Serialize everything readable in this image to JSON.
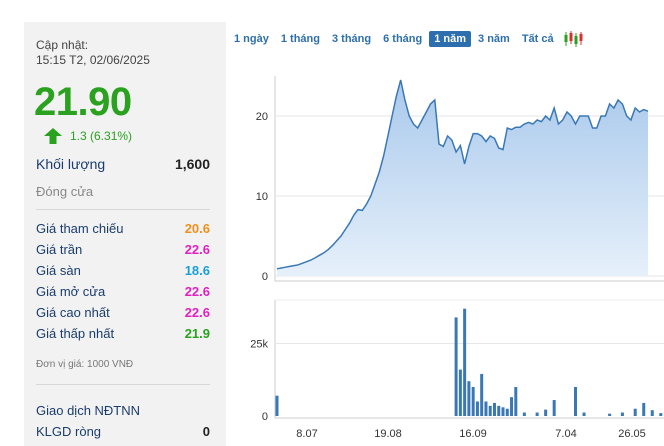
{
  "stock": {
    "updated_label": "Cập nhật:",
    "updated_time": "15:15 T2, 02/06/2025",
    "price": "21.90",
    "change": "1.3 (6.31%)",
    "volume_label": "Khối lượng",
    "volume_value": "1,600",
    "close_label": "Đóng cửa"
  },
  "price_rows": [
    {
      "label": "Giá tham chiếu",
      "value": "20.6",
      "color": "#f0901c"
    },
    {
      "label": "Giá trần",
      "value": "22.6",
      "color": "#e020c0"
    },
    {
      "label": "Giá sàn",
      "value": "18.6",
      "color": "#1aa0d8"
    },
    {
      "label": "Giá mở cửa",
      "value": "22.6",
      "color": "#e020c0"
    },
    {
      "label": "Giá cao nhất",
      "value": "22.6",
      "color": "#e020c0"
    },
    {
      "label": "Giá thấp nhất",
      "value": "21.9",
      "color": "#2aa11f"
    }
  ],
  "unit_note": "Đơn vị giá: 1000 VNĐ",
  "foreign": {
    "title": "Giao dịch NĐTNN",
    "klgd_label": "KLGD ròng",
    "klgd_value": "0"
  },
  "tabs": [
    "1 ngày",
    "1 tháng",
    "3 tháng",
    "6 tháng",
    "1 năm",
    "3 năm",
    "Tất cả"
  ],
  "active_tab": "1 năm",
  "colors": {
    "up": "#2aa11f",
    "link": "#1a3d6d",
    "tab": "#2d6fae",
    "price_line": "#3a78b5",
    "volume_bar": "#3a78b5"
  },
  "chart_data": [
    {
      "type": "area",
      "x_tick_labels": [
        "8.07",
        "19.08",
        "16.09",
        "7.04",
        "26.05"
      ],
      "y_ticks": [
        0,
        10,
        20
      ],
      "ylim": [
        0,
        25
      ],
      "values": [
        0.9,
        1.0,
        1.1,
        1.2,
        1.3,
        1.4,
        1.6,
        1.8,
        2.0,
        2.3,
        2.6,
        2.9,
        3.3,
        3.8,
        4.4,
        5.0,
        5.8,
        6.6,
        7.6,
        8.3,
        8.2,
        9.0,
        10.0,
        11.5,
        13.0,
        15.0,
        17.5,
        20.0,
        22.5,
        24.5,
        22.0,
        20.0,
        19.0,
        18.5,
        19.5,
        20.5,
        21.5,
        22.0,
        16.5,
        16.2,
        17.5,
        17.0,
        15.5,
        16.3,
        14.0,
        16.2,
        17.8,
        17.8,
        17.5,
        16.8,
        17.5,
        17.2,
        16.0,
        15.8,
        18.5,
        18.3,
        18.6,
        18.6,
        19.0,
        19.2,
        19.0,
        19.5,
        19.3,
        20.0,
        19.5,
        21.0,
        19.0,
        19.5,
        20.5,
        20.0,
        19.0,
        20.0,
        20.0,
        20.0,
        18.5,
        18.5,
        20.0,
        20.0,
        21.5,
        21.0,
        22.0,
        21.5,
        20.0,
        19.5,
        21.0,
        20.5,
        20.8,
        20.6
      ],
      "xlabel": "",
      "ylabel": "",
      "grid": true
    },
    {
      "type": "bar",
      "y_tick_labels": [
        "25k",
        "0"
      ],
      "y_ticks": [
        25000,
        0
      ],
      "ylim": [
        0,
        40000
      ],
      "bars": [
        {
          "i": 0,
          "v": 7000
        },
        {
          "i": 42,
          "v": 34000
        },
        {
          "i": 43,
          "v": 16000
        },
        {
          "i": 44,
          "v": 37000
        },
        {
          "i": 45,
          "v": 12000
        },
        {
          "i": 46,
          "v": 10000
        },
        {
          "i": 47,
          "v": 5000
        },
        {
          "i": 48,
          "v": 14500
        },
        {
          "i": 49,
          "v": 5000
        },
        {
          "i": 50,
          "v": 3500
        },
        {
          "i": 51,
          "v": 4500
        },
        {
          "i": 52,
          "v": 3500
        },
        {
          "i": 53,
          "v": 3000
        },
        {
          "i": 54,
          "v": 2500
        },
        {
          "i": 55,
          "v": 6500
        },
        {
          "i": 56,
          "v": 10000
        },
        {
          "i": 58,
          "v": 1200
        },
        {
          "i": 61,
          "v": 1200
        },
        {
          "i": 63,
          "v": 2200
        },
        {
          "i": 65,
          "v": 5500
        },
        {
          "i": 70,
          "v": 10000
        },
        {
          "i": 72,
          "v": 1200
        },
        {
          "i": 78,
          "v": 800
        },
        {
          "i": 81,
          "v": 1200
        },
        {
          "i": 84,
          "v": 2500
        },
        {
          "i": 86,
          "v": 4500
        },
        {
          "i": 88,
          "v": 2000
        },
        {
          "i": 90,
          "v": 1000
        }
      ]
    }
  ]
}
